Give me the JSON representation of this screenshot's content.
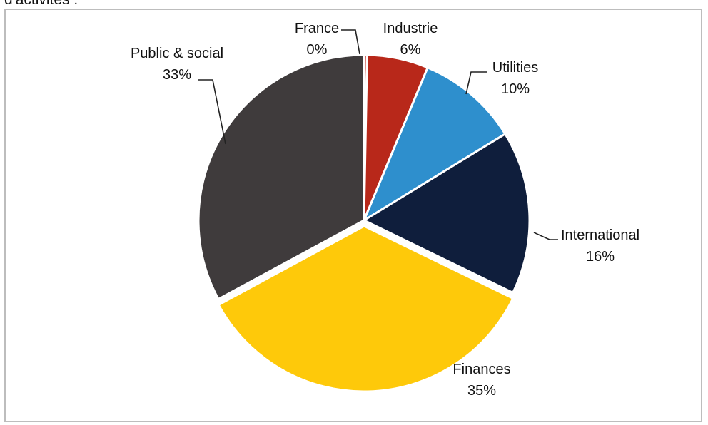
{
  "caption": "d'activités :",
  "chart_data": {
    "type": "pie",
    "categories": [
      "France",
      "Industrie",
      "Utilities",
      "International",
      "Finances",
      "Public & social"
    ],
    "values": [
      0.3,
      6,
      10,
      16,
      35,
      33
    ],
    "value_labels": [
      "0%",
      "6%",
      "10%",
      "16%",
      "35%",
      "33%"
    ],
    "colors": [
      "#c0281b",
      "#b8281a",
      "#2e8fcd",
      "#0f1e3c",
      "#fec90a",
      "#3f3b3c"
    ],
    "start": "12 o'clock, clockwise"
  }
}
